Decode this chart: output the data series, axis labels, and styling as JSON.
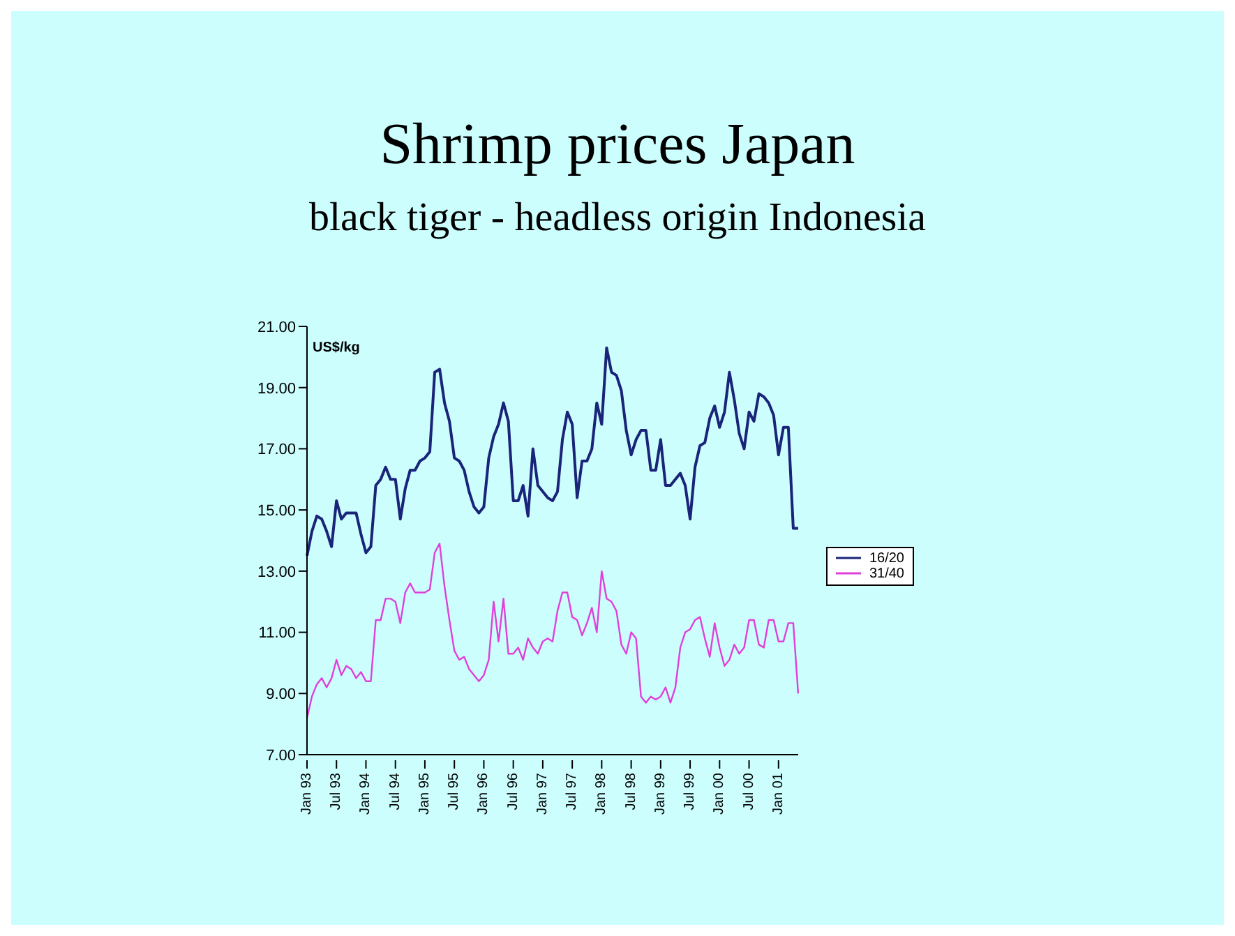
{
  "chart_data": {
    "type": "line",
    "title": "Shrimp prices Japan",
    "subtitle": "black tiger - headless origin Indonesia",
    "ylabel": "US$/kg",
    "categories": [
      "Jan 93",
      null,
      null,
      null,
      null,
      null,
      "Jul 93",
      null,
      null,
      null,
      null,
      null,
      "Jan 94",
      null,
      null,
      null,
      null,
      null,
      "Jul 94",
      null,
      null,
      null,
      null,
      null,
      "Jan 95",
      null,
      null,
      null,
      null,
      null,
      "Jul 95",
      null,
      null,
      null,
      null,
      null,
      "Jan 96",
      null,
      null,
      null,
      null,
      null,
      "Jul 96",
      null,
      null,
      null,
      null,
      null,
      "Jan 97",
      null,
      null,
      null,
      null,
      null,
      "Jul 97",
      null,
      null,
      null,
      null,
      null,
      "Jan 98",
      null,
      null,
      null,
      null,
      null,
      "Jul 98",
      null,
      null,
      null,
      null,
      null,
      "Jan 99",
      null,
      null,
      null,
      null,
      null,
      "Jul 99",
      null,
      null,
      null,
      null,
      null,
      "Jan 00",
      null,
      null,
      null,
      null,
      null,
      "Jul 00",
      null,
      null,
      null,
      null,
      null,
      "Jan 01",
      null,
      null,
      null,
      null
    ],
    "series": [
      {
        "name": "16/20",
        "color": "#1a2478",
        "values": [
          13.5,
          14.3,
          14.8,
          14.7,
          14.3,
          13.8,
          15.3,
          14.7,
          14.9,
          14.9,
          14.9,
          14.2,
          13.6,
          13.8,
          15.8,
          16.0,
          16.4,
          16.0,
          16.0,
          14.7,
          15.7,
          16.3,
          16.3,
          16.6,
          16.7,
          16.9,
          19.5,
          19.6,
          18.5,
          17.9,
          16.7,
          16.6,
          16.3,
          15.6,
          15.1,
          14.9,
          15.1,
          16.7,
          17.4,
          17.8,
          18.5,
          17.9,
          15.3,
          15.3,
          15.8,
          14.8,
          17.0,
          15.8,
          15.6,
          15.4,
          15.3,
          15.6,
          17.3,
          18.2,
          17.8,
          15.4,
          16.6,
          16.6,
          17.0,
          18.5,
          17.8,
          20.3,
          19.5,
          19.4,
          18.9,
          17.6,
          16.8,
          17.3,
          17.6,
          17.6,
          16.3,
          16.3,
          17.3,
          15.8,
          15.8,
          16.0,
          16.2,
          15.8,
          14.7,
          16.4,
          17.1,
          17.2,
          18.0,
          18.4,
          17.7,
          18.2,
          19.5,
          18.6,
          17.5,
          17.0,
          18.2,
          17.9,
          18.8,
          18.7,
          18.5,
          18.1,
          16.8,
          17.7,
          17.7,
          14.4,
          14.4
        ]
      },
      {
        "name": "31/40",
        "color": "#e040d8",
        "values": [
          8.2,
          8.9,
          9.3,
          9.5,
          9.2,
          9.5,
          10.1,
          9.6,
          9.9,
          9.8,
          9.5,
          9.7,
          9.4,
          9.4,
          11.4,
          11.4,
          12.1,
          12.1,
          12.0,
          11.3,
          12.3,
          12.6,
          12.3,
          12.3,
          12.3,
          12.4,
          13.6,
          13.9,
          12.5,
          11.4,
          10.4,
          10.1,
          10.2,
          9.8,
          9.6,
          9.4,
          9.6,
          10.1,
          12.0,
          10.7,
          12.1,
          10.3,
          10.3,
          10.5,
          10.1,
          10.8,
          10.5,
          10.3,
          10.7,
          10.8,
          10.7,
          11.7,
          12.3,
          12.3,
          11.5,
          11.4,
          10.9,
          11.3,
          11.8,
          11.0,
          13.0,
          12.1,
          12.0,
          11.7,
          10.6,
          10.3,
          11.0,
          10.8,
          8.9,
          8.7,
          8.9,
          8.8,
          8.9,
          9.2,
          8.7,
          9.2,
          10.5,
          11.0,
          11.1,
          11.4,
          11.5,
          10.8,
          10.2,
          11.3,
          10.5,
          9.9,
          10.1,
          10.6,
          10.3,
          10.5,
          11.4,
          11.4,
          10.6,
          10.5,
          11.4,
          11.4,
          10.7,
          10.7,
          11.3,
          11.3,
          9.0
        ]
      }
    ],
    "ylim": [
      7,
      21
    ],
    "yticks": [
      {
        "value": 7,
        "label": "7.00"
      },
      {
        "value": 9,
        "label": "9.00"
      },
      {
        "value": 11,
        "label": "11.00"
      },
      {
        "value": 13,
        "label": "13.00"
      },
      {
        "value": 15,
        "label": "15.00"
      },
      {
        "value": 17,
        "label": "17.00"
      },
      {
        "value": 19,
        "label": "19.00"
      },
      {
        "value": 21,
        "label": "21.00"
      }
    ],
    "grid": false,
    "legend": "right",
    "marker": "none",
    "line_style": "solid"
  }
}
